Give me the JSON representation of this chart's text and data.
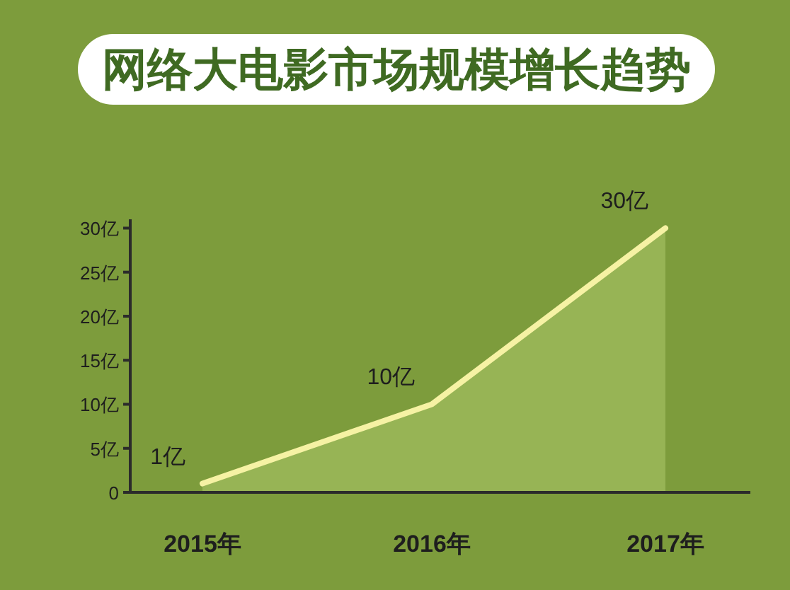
{
  "chart_data": {
    "type": "area",
    "title": "网络大电影市场规模增长趋势",
    "categories": [
      "2015年",
      "2016年",
      "2017年"
    ],
    "values": [
      1,
      10,
      30
    ],
    "color": "#f6f2a4",
    "value_labels": [
      "1亿",
      "10亿",
      "30亿"
    ],
    "ylim": [
      0,
      31
    ],
    "yticks": [
      {
        "value": 0,
        "label": "0"
      },
      {
        "value": 5,
        "label": "5亿"
      },
      {
        "value": 10,
        "label": "10亿"
      },
      {
        "value": 15,
        "label": "15亿"
      },
      {
        "value": 20,
        "label": "20亿"
      },
      {
        "value": 25,
        "label": "25亿"
      },
      {
        "value": 30,
        "label": "30亿"
      }
    ],
    "grid": false
  }
}
